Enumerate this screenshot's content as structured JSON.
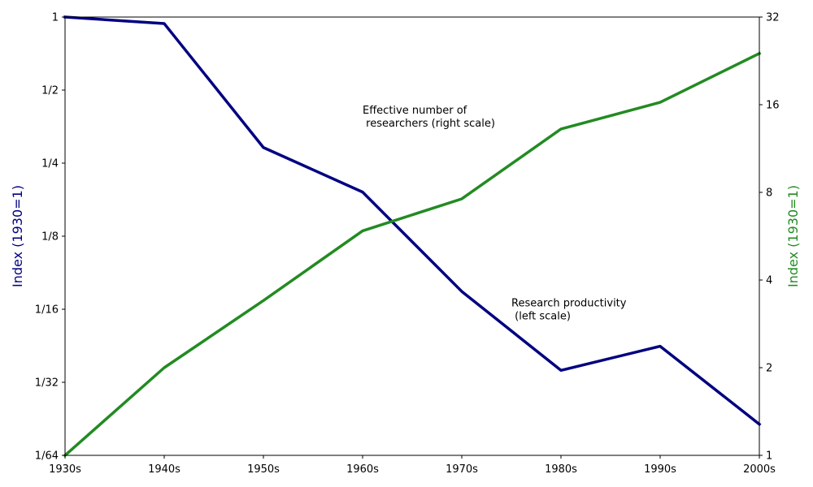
{
  "chart_data": {
    "type": "line",
    "categories": [
      "1930s",
      "1940s",
      "1950s",
      "1960s",
      "1970s",
      "1980s",
      "1990s",
      "2000s"
    ],
    "x_tick_labels": [
      "1930s",
      "1940s",
      "1950s",
      "1960s",
      "1970s",
      "1980s",
      "1990s",
      "2000s"
    ],
    "grid": false,
    "left_axis": {
      "label": "Index (1930=1)",
      "color": "#000080",
      "scale": "log2",
      "ylim": [
        0.015625,
        1
      ],
      "ticks": [
        1,
        0.5,
        0.25,
        0.125,
        0.0625,
        0.03125,
        0.015625
      ],
      "tick_labels": [
        "1",
        "1/2",
        "1/4",
        "1/8",
        "1/16",
        "1/32",
        "1/64"
      ]
    },
    "right_axis": {
      "label": "Index (1930=1)",
      "color": "#228B22",
      "scale": "log2",
      "ylim": [
        1,
        32
      ],
      "ticks": [
        1,
        2,
        4,
        8,
        16,
        32
      ],
      "tick_labels": [
        "1",
        "2",
        "4",
        "8",
        "16",
        "32"
      ]
    },
    "series": [
      {
        "axis": "left",
        "color": "#000080",
        "values": [
          1,
          0.94,
          0.29,
          0.19,
          0.074,
          0.035,
          0.044,
          0.021
        ]
      },
      {
        "axis": "right",
        "color": "#228B22",
        "values": [
          1,
          2,
          3.4,
          5.9,
          7.6,
          13.2,
          16.3,
          24
        ]
      }
    ],
    "annotations": [
      {
        "line1": "Effective number of",
        "line2": " researchers (right scale)",
        "x": "1960s",
        "x_offset": 0.0,
        "y_axis": "right",
        "y": 16
      },
      {
        "line1": "Research productivity",
        "line2": " (left scale)",
        "x": "1980s",
        "x_offset": -0.5,
        "y_axis": "left",
        "y": 0.07
      }
    ]
  }
}
